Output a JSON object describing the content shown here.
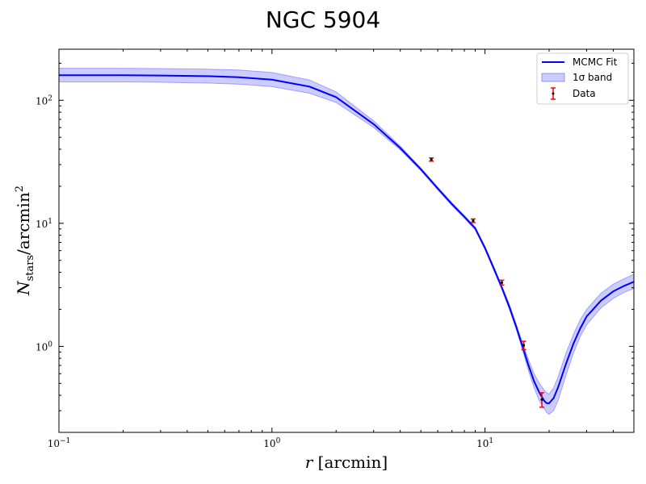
{
  "chart_data": {
    "type": "line",
    "title": "NGC 5904",
    "xlabel": "r [arcmin]",
    "ylabel": "N_stars/arcmin^2",
    "x_scale": "log",
    "y_scale": "log",
    "xlim": [
      0.1,
      50
    ],
    "ylim": [
      0.2,
      260
    ],
    "x_ticks": [
      {
        "value": 0.1,
        "base": "10",
        "exp": "−1"
      },
      {
        "value": 1,
        "base": "10",
        "exp": "0"
      },
      {
        "value": 10,
        "base": "10",
        "exp": "1"
      }
    ],
    "y_ticks": [
      {
        "value": 1,
        "base": "10",
        "exp": "0"
      },
      {
        "value": 10,
        "base": "10",
        "exp": "1"
      },
      {
        "value": 100,
        "base": "10",
        "exp": "2"
      }
    ],
    "legend": {
      "position": "top-right",
      "entries": [
        {
          "label": "MCMC Fit",
          "kind": "line",
          "color": "#0000ff"
        },
        {
          "label": "1σ band",
          "kind": "band",
          "color": "#0000ff"
        },
        {
          "label": "Data",
          "kind": "errorbar",
          "color": "#ff0000"
        }
      ]
    },
    "series": [
      {
        "name": "MCMC Fit",
        "kind": "line",
        "color": "#0000ff",
        "x": [
          0.1,
          0.2,
          0.3,
          0.5,
          0.7,
          1.0,
          1.5,
          2.0,
          3.0,
          4.0,
          5.0,
          6.0,
          7.0,
          8.0,
          9.0,
          10.0,
          11.0,
          12.0,
          13.0,
          14.0,
          15.0,
          16.0,
          17.0,
          18.0,
          19.0,
          19.5,
          20.0,
          21.0,
          22.0,
          24.0,
          26.0,
          28.0,
          30.0,
          35.0,
          40.0,
          45.0,
          50.0
        ],
        "y": [
          160,
          160,
          159,
          157,
          154,
          147,
          129,
          106,
          64,
          41,
          27.5,
          19.2,
          14.3,
          11.3,
          9.1,
          6.3,
          4.3,
          3.0,
          2.1,
          1.45,
          1.0,
          0.7,
          0.52,
          0.42,
          0.36,
          0.345,
          0.345,
          0.38,
          0.46,
          0.72,
          1.05,
          1.4,
          1.75,
          2.35,
          2.8,
          3.1,
          3.35
        ]
      },
      {
        "name": "1σ band",
        "kind": "band",
        "color": "#0000ff",
        "opacity": 0.2,
        "x": [
          0.1,
          0.2,
          0.3,
          0.5,
          0.7,
          1.0,
          1.5,
          2.0,
          3.0,
          4.0,
          5.0,
          6.0,
          7.0,
          8.0,
          9.0,
          10.0,
          11.0,
          12.0,
          13.0,
          14.0,
          15.0,
          16.0,
          17.0,
          18.0,
          19.0,
          19.5,
          20.0,
          21.0,
          22.0,
          24.0,
          26.0,
          28.0,
          30.0,
          35.0,
          40.0,
          45.0,
          50.0
        ],
        "y_low": [
          141,
          141,
          140,
          138,
          135,
          129,
          114,
          96,
          60,
          39.5,
          26.8,
          18.7,
          13.9,
          11.0,
          8.85,
          6.1,
          4.15,
          2.9,
          2.0,
          1.38,
          0.93,
          0.63,
          0.46,
          0.36,
          0.31,
          0.29,
          0.28,
          0.3,
          0.36,
          0.58,
          0.88,
          1.2,
          1.5,
          2.05,
          2.45,
          2.75,
          2.95
        ],
        "y_high": [
          182,
          182,
          181,
          179,
          176,
          168,
          146,
          117,
          68,
          42.5,
          28.2,
          19.7,
          14.7,
          11.6,
          9.35,
          6.5,
          4.45,
          3.1,
          2.2,
          1.52,
          1.07,
          0.78,
          0.6,
          0.5,
          0.44,
          0.42,
          0.41,
          0.46,
          0.56,
          0.88,
          1.25,
          1.65,
          2.0,
          2.7,
          3.2,
          3.55,
          3.85
        ]
      },
      {
        "name": "Data",
        "kind": "errorbar",
        "color": "#ff0000",
        "marker_color": "#000000",
        "x": [
          5.6,
          8.8,
          12.0,
          15.2,
          18.5
        ],
        "y": [
          33.0,
          10.5,
          3.3,
          1.02,
          0.37
        ],
        "yerr": [
          1.0,
          0.35,
          0.15,
          0.08,
          0.05
        ]
      }
    ]
  }
}
